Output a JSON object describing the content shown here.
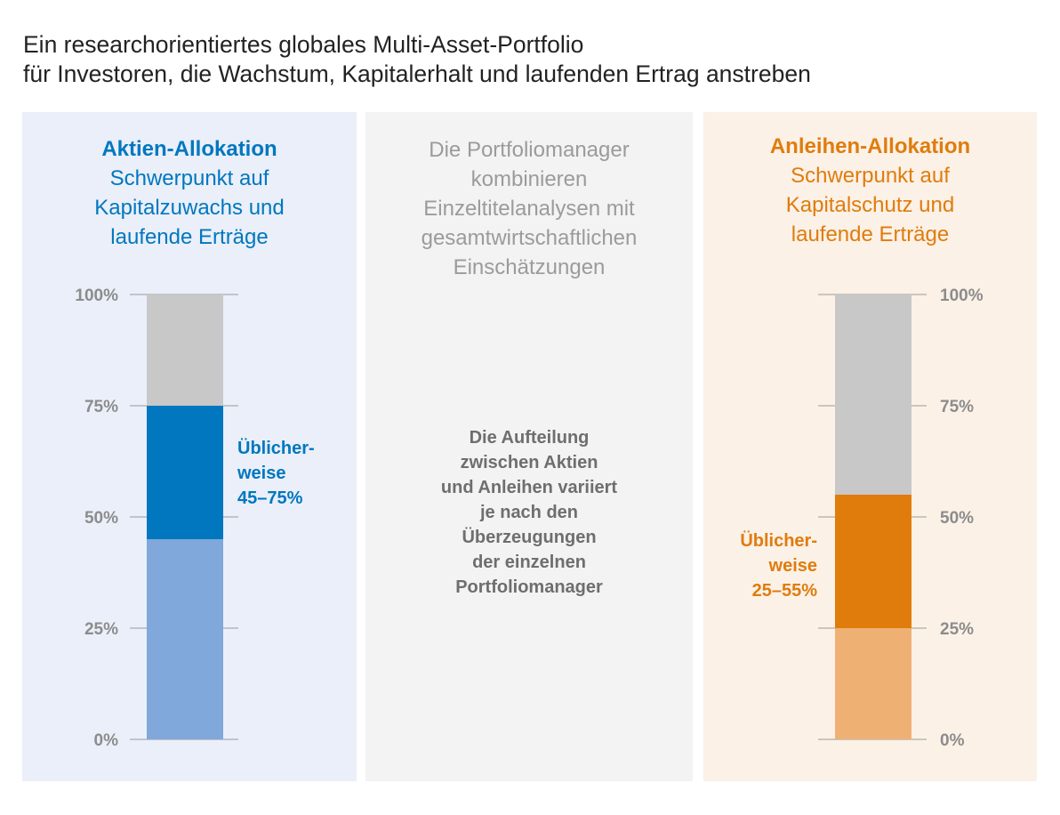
{
  "title": {
    "line1": "Ein researchorientiertes globales Multi-Asset-Portfolio",
    "line2": "für Investoren, die Wachstum, Kapitalerhalt und laufenden Ertrag anstreben"
  },
  "left_panel": {
    "heading": "Aktien-Allokation",
    "sub_line1": "Schwerpunkt auf",
    "sub_line2": "Kapitalzuwachs und",
    "sub_line3": "laufende Erträge",
    "range_line1": "Üblicher-",
    "range_line2": "weise",
    "range_line3": "45–75%"
  },
  "middle_panel": {
    "intro_lines": [
      "Die Portfoliomanager",
      "kombinieren",
      "Einzeltitelanalysen mit",
      "gesamtwirtschaftlichen",
      "Einschätzungen"
    ],
    "note_lines": [
      "Die Aufteilung",
      "zwischen Aktien",
      "und Anleihen variiert",
      "je nach den",
      "Überzeugungen",
      "der einzelnen",
      "Portfoliomanager"
    ]
  },
  "right_panel": {
    "heading": "Anleihen-Allokation",
    "sub_line1": "Schwerpunkt auf",
    "sub_line2": "Kapitalschutz und",
    "sub_line3": "laufende Erträge",
    "range_line1": "Üblicher-",
    "range_line2": "weise",
    "range_line3": "25–55%"
  },
  "colors": {
    "equity_accent": "#0077bf",
    "equity_light": "#80a8da",
    "bond_accent": "#e07c0c",
    "bond_light": "#efb074",
    "remainder_gray": "#c8c8c8",
    "axis_gray": "#8c8c8c"
  },
  "chart_data": [
    {
      "type": "bar",
      "name": "Aktien-Allokation",
      "ylim": [
        0,
        100
      ],
      "ticks": [
        0,
        25,
        50,
        75,
        100
      ],
      "tick_labels": [
        "0%",
        "25%",
        "50%",
        "75%",
        "100%"
      ],
      "axis_side": "left",
      "segments": [
        {
          "name": "minimum",
          "from": 0,
          "to": 45,
          "color": "#80a8da"
        },
        {
          "name": "typical-range",
          "from": 45,
          "to": 75,
          "color": "#0077bf"
        },
        {
          "name": "remainder",
          "from": 75,
          "to": 100,
          "color": "#c8c8c8"
        }
      ],
      "range_label": "Üblicherweise 45–75%"
    },
    {
      "type": "bar",
      "name": "Anleihen-Allokation",
      "ylim": [
        0,
        100
      ],
      "ticks": [
        0,
        25,
        50,
        75,
        100
      ],
      "tick_labels": [
        "0%",
        "25%",
        "50%",
        "75%",
        "100%"
      ],
      "axis_side": "right",
      "segments": [
        {
          "name": "minimum",
          "from": 0,
          "to": 25,
          "color": "#efb074"
        },
        {
          "name": "typical-range",
          "from": 25,
          "to": 55,
          "color": "#e07c0c"
        },
        {
          "name": "remainder",
          "from": 55,
          "to": 100,
          "color": "#c8c8c8"
        }
      ],
      "range_label": "Üblicherweise 25–55%"
    }
  ]
}
